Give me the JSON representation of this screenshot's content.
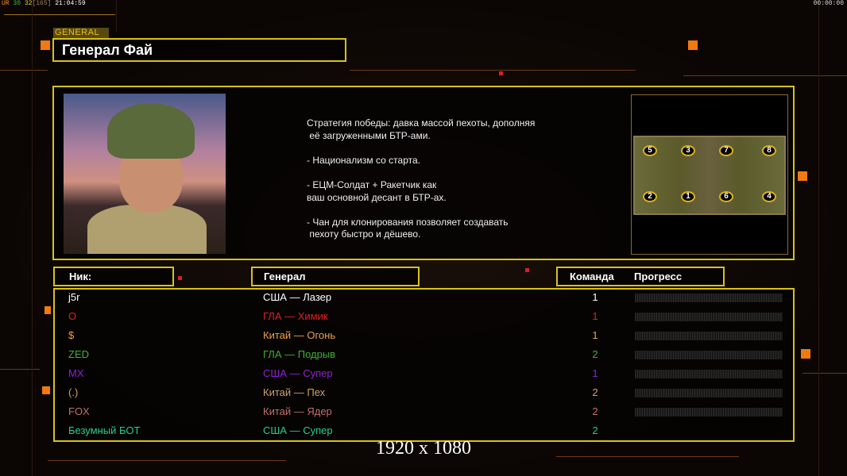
{
  "status_bar": {
    "left": [
      {
        "text": "UR",
        "color": "#ff9020"
      },
      {
        "text": " 30",
        "color": "#40c040"
      },
      {
        "text": " 32",
        "color": "#e0d040"
      },
      {
        "text": "[165]",
        "color": "#a08060"
      },
      {
        "text": " 21:04:59",
        "color": "#ffffff"
      }
    ],
    "right": "00:00:00"
  },
  "general": {
    "tag": "GENERAL",
    "name": "Генерал Фай",
    "description": "Стратегия победы: давка массой пехоты, дополняя\n её загруженными БТР-ами.\n\n- Национализм со старта.\n\n- ЕЦМ-Солдат + Ракетчик как\nваш основной десант в БТР-ах.\n\n- Чан для клонирования позволяет создавать\n пехоту быстро и дёшево."
  },
  "map": {
    "start_positions": [
      "5",
      "3",
      "7",
      "8",
      "2",
      "1",
      "6",
      "4"
    ]
  },
  "headers": {
    "nick": "Ник:",
    "general": "Генерал",
    "team": "Команда",
    "progress": "Прогресс"
  },
  "players": [
    {
      "nick": "j5r",
      "general": "США — Лазер",
      "team": "1",
      "color": "#ffffff",
      "progress": 0
    },
    {
      "nick": "O",
      "general": "ГЛА — Химик",
      "team": "1",
      "color": "#e02020",
      "progress": 0
    },
    {
      "nick": "$",
      "general": "Китай — Огонь",
      "team": "1",
      "color": "#f0a040",
      "progress": 0
    },
    {
      "nick": "ZED",
      "general": "ГЛА — Подрыв",
      "team": "2",
      "color": "#40b030",
      "progress": 0
    },
    {
      "nick": "MX",
      "general": "США — Супер",
      "team": "1",
      "color": "#9020d0",
      "progress": 0
    },
    {
      "nick": "(.)",
      "general": "Китай — Пех",
      "team": "2",
      "color": "#d0a070",
      "progress": 0
    },
    {
      "nick": "FOX",
      "general": "Китай — Ядер",
      "team": "2",
      "color": "#c07070",
      "progress": 0
    },
    {
      "nick": "Безумный БОТ",
      "general": "США — Супер",
      "team": "2",
      "color": "#20d090",
      "progress": null
    }
  ],
  "resolution": "1920 x 1080",
  "colors": {
    "frame": "#d8c21a",
    "accent": "#f07a10"
  }
}
